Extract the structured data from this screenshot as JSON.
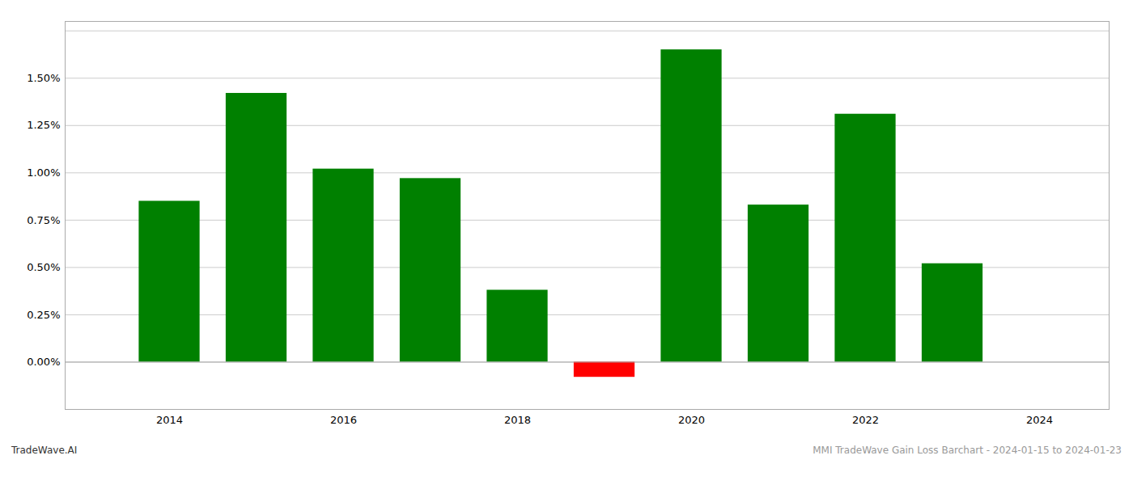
{
  "chart_data": {
    "type": "bar",
    "x": [
      2014,
      2015,
      2016,
      2017,
      2018,
      2019,
      2020,
      2021,
      2022,
      2023
    ],
    "values": [
      0.0085,
      0.0142,
      0.0102,
      0.0097,
      0.0038,
      -0.0008,
      0.0165,
      0.0083,
      0.0131,
      0.0052
    ],
    "colors": [
      "#008000",
      "#008000",
      "#008000",
      "#008000",
      "#008000",
      "#ff0000",
      "#008000",
      "#008000",
      "#008000",
      "#008000"
    ],
    "xlim": [
      2012.8,
      2024.8
    ],
    "xticks": [
      2014,
      2016,
      2018,
      2020,
      2022,
      2024
    ],
    "ylim": [
      -0.0025,
      0.018
    ],
    "yticks": [
      {
        "value": 0.0,
        "label": "0.00%"
      },
      {
        "value": 0.0025,
        "label": "0.25%"
      },
      {
        "value": 0.005,
        "label": "0.50%"
      },
      {
        "value": 0.0075,
        "label": "0.75%"
      },
      {
        "value": 0.01,
        "label": "1.00%"
      },
      {
        "value": 0.0125,
        "label": "1.25%"
      },
      {
        "value": 0.015,
        "label": "1.50%"
      },
      {
        "value": 0.0175,
        "label": ""
      }
    ],
    "grid": true,
    "annotations": [
      "TradeWave.AI",
      "MMI TradeWave Gain Loss Barchart - 2024-01-15 to 2024-01-23"
    ]
  }
}
